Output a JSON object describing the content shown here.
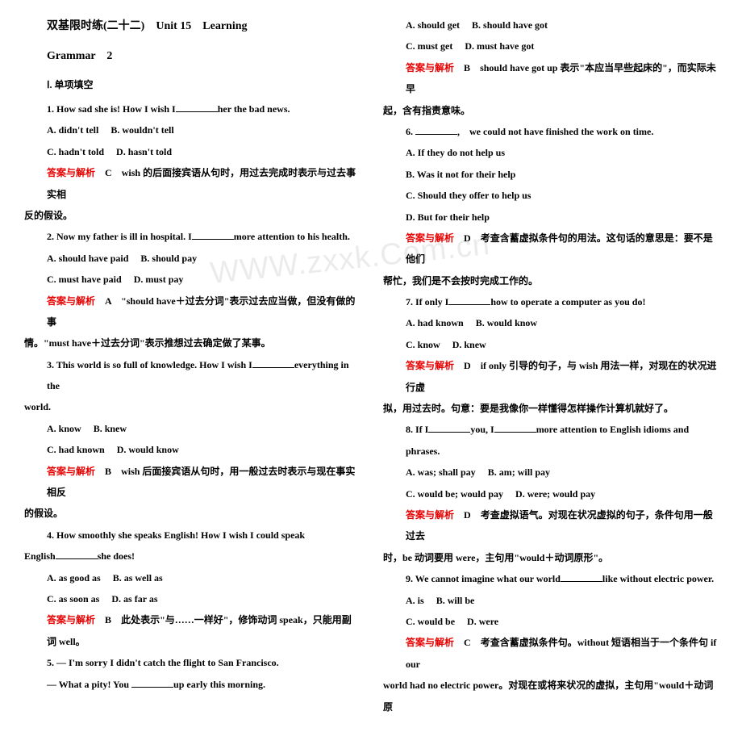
{
  "header": {
    "title_cn": "双基限时练(二十二)",
    "title_en": "Unit 15　Learning",
    "subtitle": "Grammar　2",
    "section": "Ⅰ. 单项填空"
  },
  "watermark": "WWW.zxxk.Com.cn",
  "left": {
    "q1": {
      "stem_a": "1. How sad she is! How I wish I",
      "stem_b": "her the bad news.",
      "optA": "A. didn't tell",
      "optB": "B. wouldn't tell",
      "optC": "C. hadn't told",
      "optD": "D. hasn't told",
      "ans_label": "答案与解析",
      "ans_key": "C",
      "ans_text_a": "wish 的后面接宾语从句时，用过去完成时表示与过去事实相",
      "ans_text_b": "反的假设。"
    },
    "q2": {
      "stem_a": "2. Now my father is ill in hospital. I",
      "stem_b": "more attention to his health.",
      "optA": "A. should have paid",
      "optB": "B. should pay",
      "optC": "C. must have paid",
      "optD": "D. must pay",
      "ans_label": "答案与解析",
      "ans_key": "A",
      "ans_text_a": "\"should have＋过去分词\"表示过去应当做，但没有做的事",
      "ans_text_b": "情。\"must have＋过去分词\"表示推想过去确定做了某事。"
    },
    "q3": {
      "stem_a": "3. This world is so full of knowledge. How I wish I",
      "stem_b": "everything in the",
      "stem_c": "world.",
      "optA": "A. know",
      "optB": "B. knew",
      "optC": "C. had known",
      "optD": "D. would know",
      "ans_label": "答案与解析",
      "ans_key": "B",
      "ans_text_a": "wish 后面接宾语从句时，用一般过去时表示与现在事实相反",
      "ans_text_b": "的假设。"
    },
    "q4": {
      "stem_a": "4. How smoothly she speaks English! How I wish I could speak",
      "stem_b": "English",
      "stem_c": "she does!",
      "optA": "A. as good as",
      "optB": "B. as well as",
      "optC": "C. as soon as",
      "optD": "D. as far as",
      "ans_label": "答案与解析",
      "ans_key": "B",
      "ans_text": "此处表示\"与……一样好\"，修饰动词 speak，只能用副词 well。"
    },
    "q5": {
      "stem_a": "5. — I'm sorry I didn't catch the flight to San Francisco.",
      "stem_b": "— What a pity! You ",
      "stem_c": "up early this morning."
    }
  },
  "right": {
    "q5": {
      "optA": "A. should get",
      "optB": "B. should have got",
      "optC": "C. must get",
      "optD": "D. must have got",
      "ans_label": "答案与解析",
      "ans_key": "B",
      "ans_text_a": "should have got up 表示\"本应当早些起床的\"，而实际未早",
      "ans_text_b": "起，含有指责意味。"
    },
    "q6": {
      "stem_a": "6. ",
      "stem_b": ",　we could not have finished the work on time.",
      "optA": "A. If they do not help us",
      "optB": "B. Was it not for their help",
      "optC": "C. Should they offer to help us",
      "optD": "D. But for their help",
      "ans_label": "答案与解析",
      "ans_key": "D",
      "ans_text_a": "考查含蓄虚拟条件句的用法。这句话的意思是：要不是他们",
      "ans_text_b": "帮忙，我们是不会按时完成工作的。"
    },
    "q7": {
      "stem_a": "7. If only I",
      "stem_b": "how to operate a computer as you do!",
      "optA": "A. had known",
      "optB": "B. would know",
      "optC": "C. know",
      "optD": "D. knew",
      "ans_label": "答案与解析",
      "ans_key": "D",
      "ans_text_a": "if only 引导的句子，与 wish 用法一样，对现在的状况进行虚",
      "ans_text_b": "拟，用过去时。句意：要是我像你一样懂得怎样操作计算机就好了。"
    },
    "q8": {
      "stem_a": "8. If I",
      "stem_b": "you, I",
      "stem_c": "more attention to English idioms and phrases.",
      "optA": "A. was; shall pay",
      "optB": "B. am; will pay",
      "optC": "C. would be; would pay",
      "optD": "D. were; would pay",
      "ans_label": "答案与解析",
      "ans_key": "D",
      "ans_text_a": "考查虚拟语气。对现在状况虚拟的句子，条件句用一般过去",
      "ans_text_b": "时，be 动词要用 were，主句用\"would＋动词原形\"。"
    },
    "q9": {
      "stem_a": "9. We cannot imagine what our world",
      "stem_b": "like without electric power.",
      "optA": "A. is",
      "optB": "B. will be",
      "optC": "C. would be",
      "optD": "D. were",
      "ans_label": "答案与解析",
      "ans_key": "C",
      "ans_text_a": "考查含蓄虚拟条件句。without 短语相当于一个条件句 if our",
      "ans_text_b": "world had no electric power。对现在或将来状况的虚拟，主句用\"would＋动词原"
    }
  }
}
